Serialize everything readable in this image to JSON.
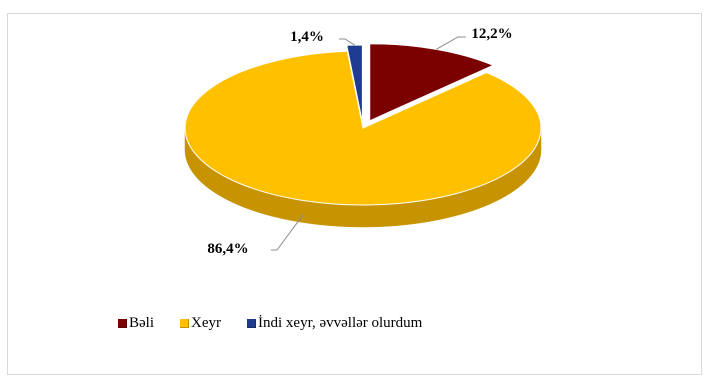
{
  "chart_data": {
    "type": "pie",
    "title": "",
    "series": [
      {
        "name": "Bəli",
        "value": 12.2,
        "label": "12,2%",
        "color": "#7b0000",
        "side": "#4e0000"
      },
      {
        "name": "Xeyr",
        "value": 86.4,
        "label": "86,4%",
        "color": "#ffc000",
        "side": "#c89300"
      },
      {
        "name": "İndi xeyr, əvvəllər olurdum",
        "value": 1.4,
        "label": "1,4%",
        "color": "#1f3b8f",
        "side": "#142660"
      }
    ],
    "legend_position": "bottom",
    "three_d": true,
    "exploded": true
  }
}
